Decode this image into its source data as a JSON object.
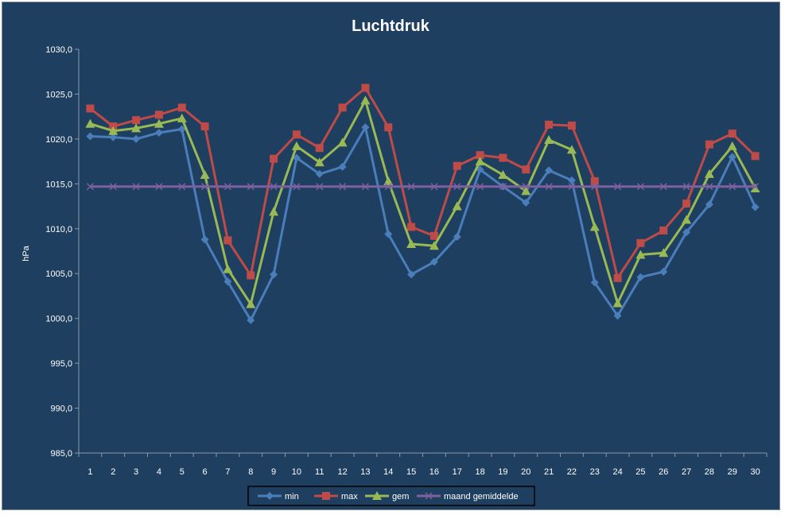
{
  "chart_data": {
    "type": "line",
    "title": "Luchtdruk",
    "xlabel": "",
    "ylabel": "hPa",
    "ylim": [
      985,
      1030
    ],
    "y_ticks": [
      "985,0",
      "990,0",
      "995,0",
      "1000,0",
      "1005,0",
      "1010,0",
      "1015,0",
      "1020,0",
      "1025,0",
      "1030,0"
    ],
    "categories": [
      "1",
      "2",
      "3",
      "4",
      "5",
      "6",
      "7",
      "8",
      "9",
      "10",
      "11",
      "12",
      "13",
      "14",
      "15",
      "16",
      "17",
      "18",
      "19",
      "20",
      "21",
      "22",
      "23",
      "24",
      "25",
      "26",
      "27",
      "28",
      "29",
      "30"
    ],
    "grid": false,
    "legend_position": "bottom",
    "series": [
      {
        "name": "min",
        "color": "#4a7ebb",
        "marker": "diamond",
        "values": [
          1020.3,
          1020.2,
          1020.0,
          1020.7,
          1021.1,
          1008.8,
          1004.1,
          999.8,
          1004.9,
          1017.9,
          1016.1,
          1016.9,
          1021.3,
          1009.4,
          1004.9,
          1006.3,
          1009.1,
          1016.6,
          1014.7,
          1012.9,
          1016.5,
          1015.4,
          1004.0,
          1000.3,
          1004.6,
          1005.2,
          1009.6,
          1012.7,
          1018.0,
          1012.4
        ]
      },
      {
        "name": "max",
        "color": "#be4b48",
        "marker": "square",
        "values": [
          1023.4,
          1021.4,
          1022.1,
          1022.7,
          1023.5,
          1021.4,
          1008.7,
          1004.8,
          1017.8,
          1020.5,
          1019.0,
          1023.5,
          1025.7,
          1021.3,
          1010.2,
          1009.2,
          1017.0,
          1018.2,
          1017.9,
          1016.6,
          1021.6,
          1021.5,
          1015.3,
          1004.5,
          1008.4,
          1009.8,
          1012.8,
          1019.4,
          1020.6,
          1018.1
        ]
      },
      {
        "name": "gem",
        "color": "#98b954",
        "marker": "triangle",
        "values": [
          1021.7,
          1020.9,
          1021.2,
          1021.7,
          1022.3,
          1016.0,
          1005.5,
          1001.6,
          1011.9,
          1019.2,
          1017.4,
          1019.6,
          1024.3,
          1015.3,
          1008.3,
          1008.1,
          1012.5,
          1017.5,
          1016.0,
          1014.2,
          1019.9,
          1018.8,
          1010.2,
          1001.7,
          1007.1,
          1007.3,
          1011.0,
          1016.1,
          1019.2,
          1014.5
        ]
      },
      {
        "name": "maand gemiddelde",
        "color": "#7d60a0",
        "marker": "x",
        "values": [
          1014.7,
          1014.7,
          1014.7,
          1014.7,
          1014.7,
          1014.7,
          1014.7,
          1014.7,
          1014.7,
          1014.7,
          1014.7,
          1014.7,
          1014.7,
          1014.7,
          1014.7,
          1014.7,
          1014.7,
          1014.7,
          1014.7,
          1014.7,
          1014.7,
          1014.7,
          1014.7,
          1014.7,
          1014.7,
          1014.7,
          1014.7,
          1014.7,
          1014.7,
          1014.7
        ]
      }
    ]
  }
}
